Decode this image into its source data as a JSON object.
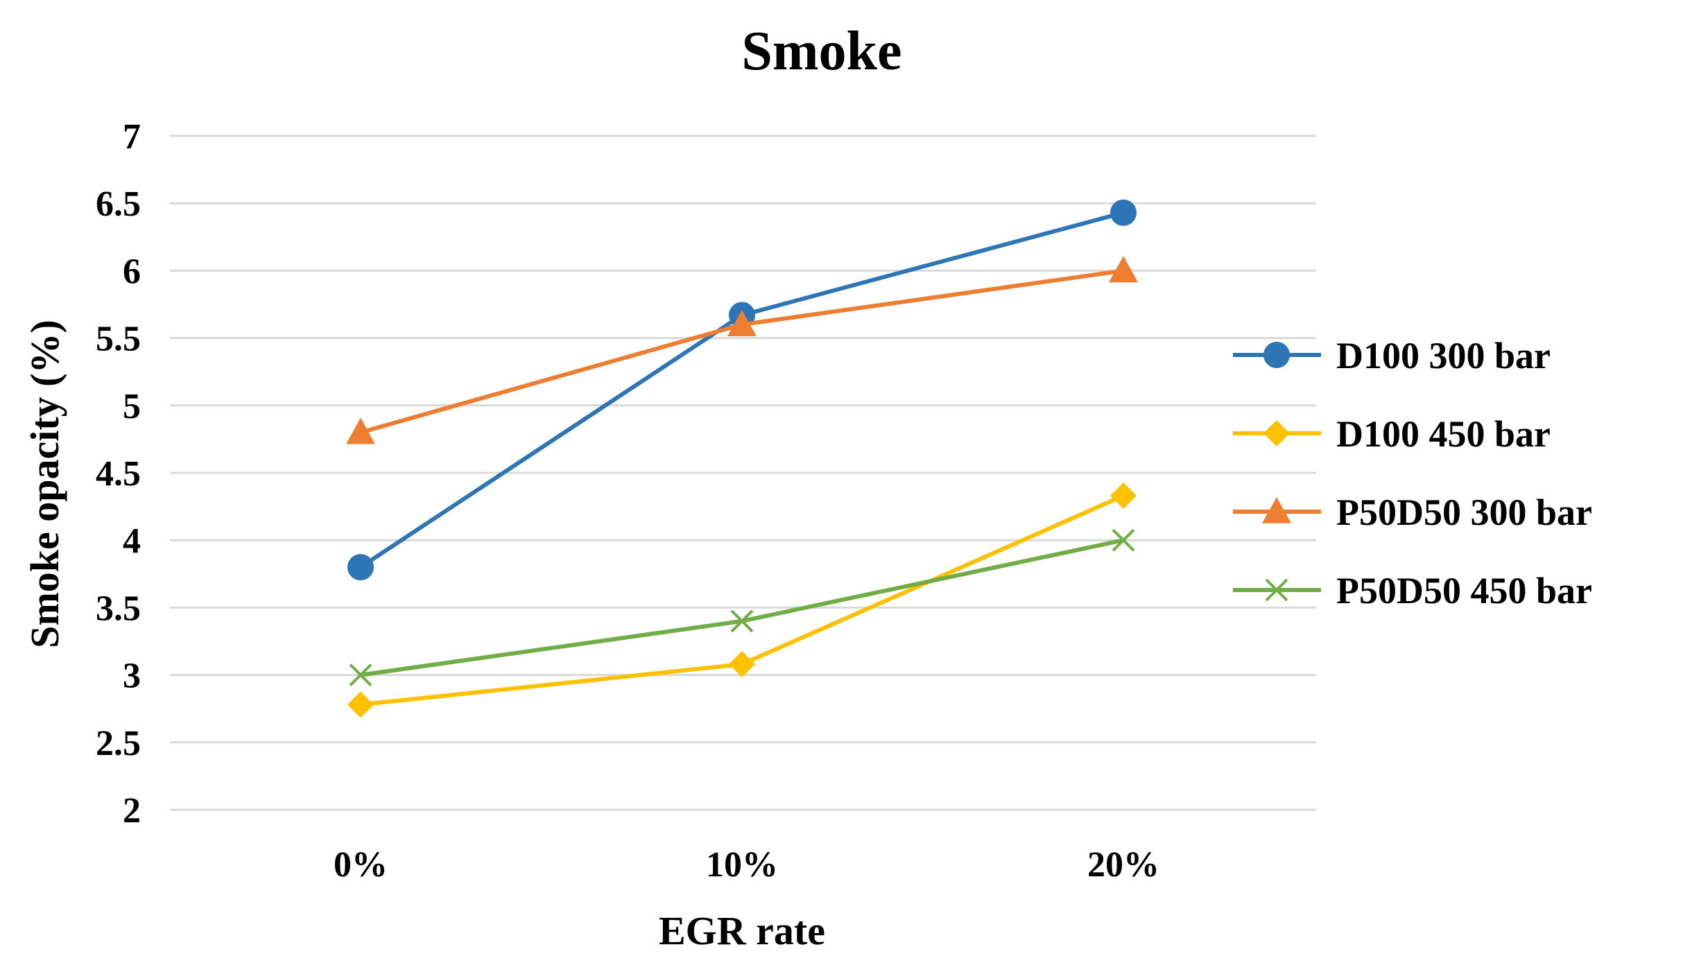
{
  "chart_data": {
    "type": "line",
    "title": "Smoke",
    "xlabel": "EGR rate",
    "ylabel": "Smoke opacity (%)",
    "categories": [
      "0%",
      "10%",
      "20%"
    ],
    "ylim": [
      2,
      7
    ],
    "yticks": [
      "2",
      "2.5",
      "3",
      "3.5",
      "4",
      "4.5",
      "5",
      "5.5",
      "6",
      "6.5",
      "7"
    ],
    "grid": true,
    "legend_position": "right",
    "series": [
      {
        "name": "D100 300 bar",
        "color": "#2e75b6",
        "marker": "circle",
        "values": [
          3.8,
          5.67,
          6.43
        ]
      },
      {
        "name": "D100 450 bar",
        "color": "#ffc000",
        "marker": "diamond",
        "values": [
          2.78,
          3.08,
          4.33
        ]
      },
      {
        "name": "P50D50 300 bar",
        "color": "#ed7d31",
        "marker": "triangle",
        "values": [
          4.8,
          5.6,
          6.0
        ]
      },
      {
        "name": "P50D50 450 bar",
        "color": "#70ad47",
        "marker": "x",
        "values": [
          3.0,
          3.4,
          4.0
        ]
      }
    ]
  }
}
